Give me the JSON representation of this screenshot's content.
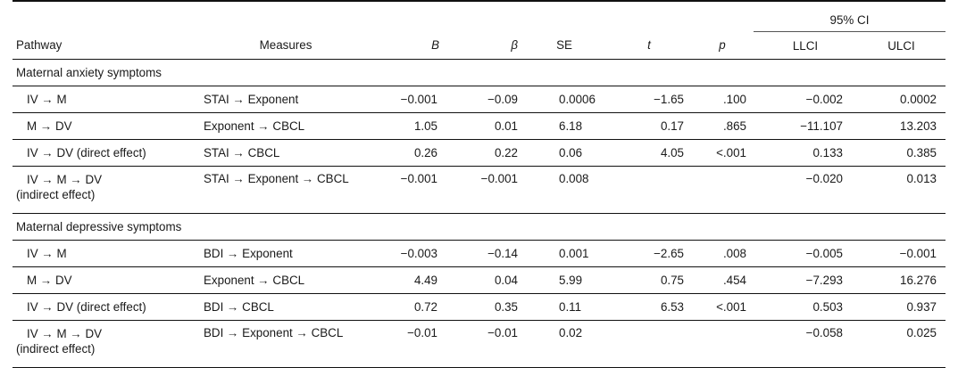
{
  "header": {
    "ci_label": "95% CI",
    "columns": [
      "Pathway",
      "Measures",
      "B",
      "β",
      "SE",
      "t",
      "p",
      "LLCI",
      "ULCI"
    ]
  },
  "sections": [
    {
      "title": "Maternal anxiety symptoms",
      "rows": [
        {
          "pathway": [
            "IV → M"
          ],
          "measures": "STAI → Exponent",
          "B": "−0.001",
          "beta": "−0.09",
          "SE": "0.0006",
          "t": "−1.65",
          "p": ".100",
          "LLCI": "−0.002",
          "ULCI": "0.0002"
        },
        {
          "pathway": [
            "M → DV"
          ],
          "measures": "Exponent → CBCL",
          "B": "1.05",
          "beta": "0.01",
          "SE": "6.18",
          "t": "0.17",
          "p": ".865",
          "LLCI": "−11.107",
          "ULCI": "13.203"
        },
        {
          "pathway": [
            "IV → DV (direct effect)"
          ],
          "measures": "STAI → CBCL",
          "B": "0.26",
          "beta": "0.22",
          "SE": "0.06",
          "t": "4.05",
          "p": "<.001",
          "LLCI": "0.133",
          "ULCI": "0.385"
        },
        {
          "pathway": [
            "IV → M → DV",
            "(indirect effect)"
          ],
          "measures": "STAI → Exponent → CBCL",
          "B": "−0.001",
          "beta": "−0.001",
          "SE": "0.008",
          "t": "",
          "p": "",
          "LLCI": "−0.020",
          "ULCI": "0.013"
        }
      ]
    },
    {
      "title": "Maternal depressive symptoms",
      "rows": [
        {
          "pathway": [
            "IV → M"
          ],
          "measures": "BDI → Exponent",
          "B": "−0.003",
          "beta": "−0.14",
          "SE": "0.001",
          "t": "−2.65",
          "p": ".008",
          "LLCI": "−0.005",
          "ULCI": "−0.001"
        },
        {
          "pathway": [
            "M → DV"
          ],
          "measures": "Exponent → CBCL",
          "B": "4.49",
          "beta": "0.04",
          "SE": "5.99",
          "t": "0.75",
          "p": ".454",
          "LLCI": "−7.293",
          "ULCI": "16.276"
        },
        {
          "pathway": [
            "IV → DV (direct effect)"
          ],
          "measures": "BDI → CBCL",
          "B": "0.72",
          "beta": "0.35",
          "SE": "0.11",
          "t": "6.53",
          "p": "<.001",
          "LLCI": "0.503",
          "ULCI": "0.937"
        },
        {
          "pathway": [
            "IV → M → DV",
            "(indirect effect)"
          ],
          "measures": "BDI → Exponent → CBCL",
          "B": "−0.01",
          "beta": "−0.01",
          "SE": "0.02",
          "t": "",
          "p": "",
          "LLCI": "−0.058",
          "ULCI": "0.025"
        }
      ]
    }
  ]
}
